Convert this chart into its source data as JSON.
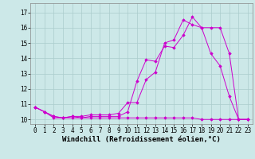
{
  "xlabel": "Windchill (Refroidissement éolien,°C)",
  "bg_color": "#cce8e8",
  "line_color": "#cc00cc",
  "grid_color": "#aacccc",
  "xlim": [
    -0.5,
    23.5
  ],
  "ylim": [
    9.7,
    17.6
  ],
  "xticks": [
    0,
    1,
    2,
    3,
    4,
    5,
    6,
    7,
    8,
    9,
    10,
    11,
    12,
    13,
    14,
    15,
    16,
    17,
    18,
    19,
    20,
    21,
    22,
    23
  ],
  "yticks": [
    10,
    11,
    12,
    13,
    14,
    15,
    16,
    17
  ],
  "line1_x": [
    0,
    1,
    2,
    3,
    4,
    5,
    6,
    7,
    8,
    9,
    10,
    11,
    12,
    13,
    14,
    15,
    16,
    17,
    18,
    19,
    20,
    21,
    22,
    23
  ],
  "line1_y": [
    10.8,
    10.5,
    10.1,
    10.1,
    10.1,
    10.1,
    10.1,
    10.1,
    10.1,
    10.1,
    10.1,
    10.1,
    10.1,
    10.1,
    10.1,
    10.1,
    10.1,
    10.1,
    10.0,
    10.0,
    10.0,
    10.0,
    10.0,
    10.0
  ],
  "line2_x": [
    0,
    1,
    2,
    3,
    4,
    5,
    6,
    7,
    8,
    9,
    10,
    11,
    12,
    13,
    14,
    15,
    16,
    17,
    18,
    19,
    20,
    21,
    22,
    23
  ],
  "line2_y": [
    10.8,
    10.5,
    10.2,
    10.1,
    10.2,
    10.1,
    10.2,
    10.2,
    10.2,
    10.2,
    10.5,
    12.5,
    13.9,
    13.8,
    14.8,
    14.7,
    15.5,
    16.7,
    16.0,
    14.3,
    13.5,
    11.5,
    10.0,
    10.0
  ],
  "line3_x": [
    0,
    1,
    2,
    3,
    4,
    5,
    6,
    7,
    8,
    9,
    10,
    11,
    12,
    13,
    14,
    15,
    16,
    17,
    18,
    19,
    20,
    21,
    22,
    23
  ],
  "line3_y": [
    10.8,
    10.5,
    10.2,
    10.1,
    10.2,
    10.2,
    10.3,
    10.3,
    10.3,
    10.4,
    11.1,
    11.1,
    12.6,
    13.1,
    15.0,
    15.2,
    16.5,
    16.2,
    16.0,
    16.0,
    16.0,
    14.3,
    10.0,
    10.0
  ],
  "tick_fontsize": 5.5,
  "xlabel_fontsize": 6.5
}
